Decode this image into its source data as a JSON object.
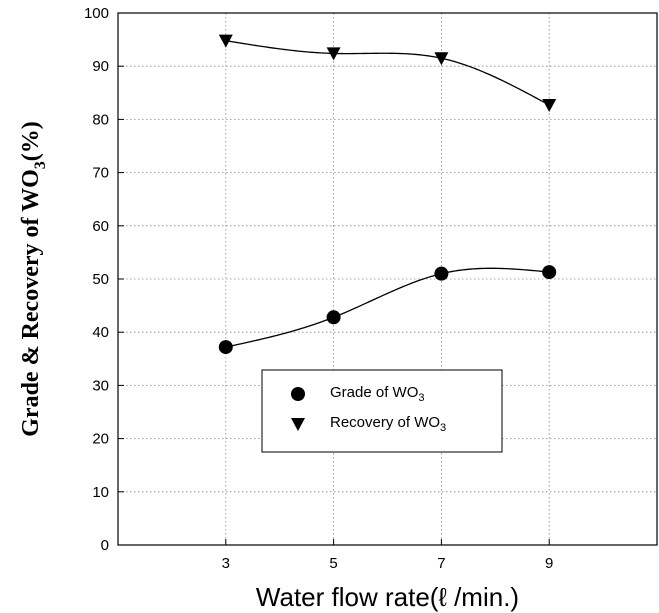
{
  "chart_data": {
    "type": "line",
    "x": [
      3,
      5,
      7,
      9
    ],
    "xticks": [
      "3",
      "5",
      "7",
      "9"
    ],
    "xlim": [
      1,
      11
    ],
    "ylim": [
      0,
      100
    ],
    "yticks": [
      "0",
      "10",
      "20",
      "30",
      "40",
      "50",
      "60",
      "70",
      "80",
      "90",
      "100"
    ],
    "xlabel": "Water flow rate(ℓ /min.)",
    "ylabel": {
      "prefix": "Grade & Recovery of WO",
      "sub": "3",
      "suffix": "(%)"
    },
    "grid": true,
    "legend_position": "lower-center",
    "series": [
      {
        "name": {
          "prefix": "Grade of WO",
          "sub": "3"
        },
        "marker": "circle",
        "values": [
          37.2,
          42.8,
          51.0,
          51.3
        ]
      },
      {
        "name": {
          "prefix": "Recovery of WO",
          "sub": "3"
        },
        "marker": "triangle-down",
        "values": [
          94.8,
          92.4,
          91.5,
          82.7
        ]
      }
    ]
  }
}
